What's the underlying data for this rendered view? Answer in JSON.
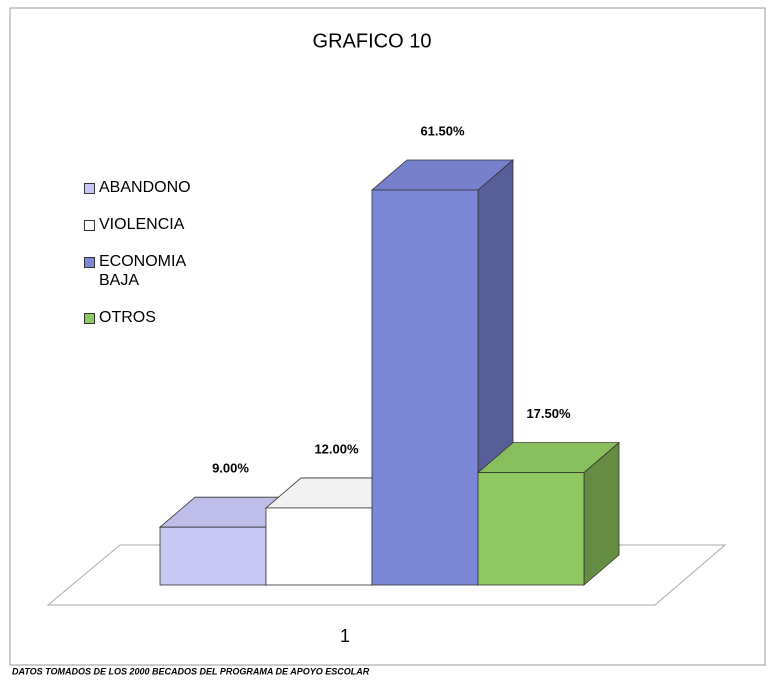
{
  "chart_data": {
    "type": "bar3d",
    "title": "GRAFICO 10",
    "categories": [
      "1"
    ],
    "series": [
      {
        "name": "ABANDONO",
        "color": "#c8c8f4",
        "values": [
          9
        ],
        "value_labels": [
          "9.00%"
        ]
      },
      {
        "name": "VIOLENCIA",
        "color": "#ffffff",
        "values": [
          12
        ],
        "value_labels": [
          "12.00%"
        ]
      },
      {
        "name": "ECONOMIA BAJA",
        "color": "#7b88d8",
        "values": [
          61.5
        ],
        "value_labels": [
          "61.50%"
        ]
      },
      {
        "name": "OTROS",
        "color": "#8fc860",
        "values": [
          17.5
        ],
        "value_labels": [
          "17.50%"
        ]
      }
    ],
    "note": "DATOS TOMADOS DE LOS 2000 BECADOS DEL PROGRAMA DE APOYO ESCOLAR"
  }
}
